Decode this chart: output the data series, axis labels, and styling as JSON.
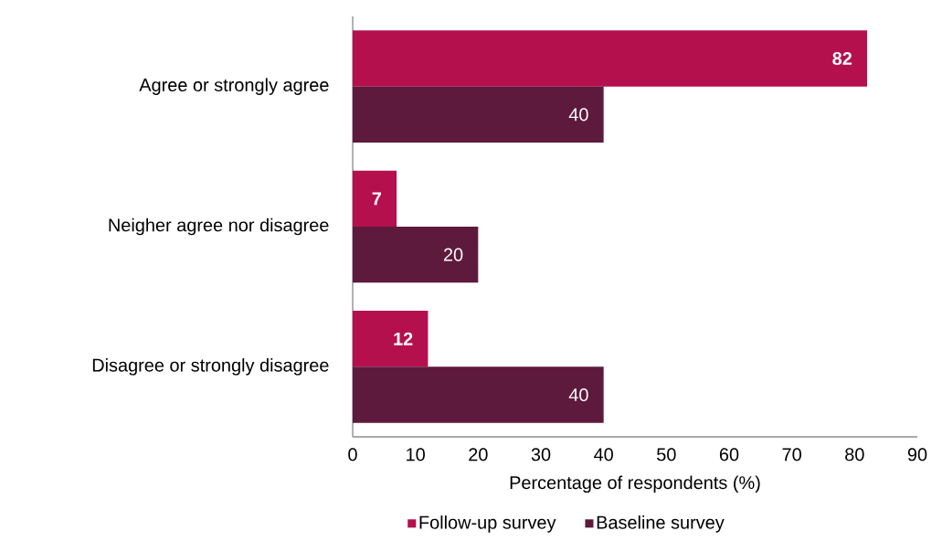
{
  "chart_data": {
    "type": "bar",
    "orientation": "horizontal",
    "xlabel": "Percentage of respondents (%)",
    "categories": [
      "Agree or strongly agree",
      "Neigher agree nor disagree",
      "Disagree or strongly disagree"
    ],
    "series": [
      {
        "name": "Follow-up survey",
        "color": "#b5104e",
        "values": [
          82,
          7,
          12
        ],
        "value_labels": [
          "82",
          "7",
          "12"
        ]
      },
      {
        "name": "Baseline survey",
        "color": "#5e1a3d",
        "values": [
          40,
          20,
          40
        ],
        "value_labels": [
          "40",
          "20",
          "40"
        ]
      }
    ],
    "xlim": [
      0,
      90
    ],
    "xticks": [
      0,
      10,
      20,
      30,
      40,
      50,
      60,
      70,
      80,
      90
    ],
    "legend": "bottom",
    "grid": false
  }
}
